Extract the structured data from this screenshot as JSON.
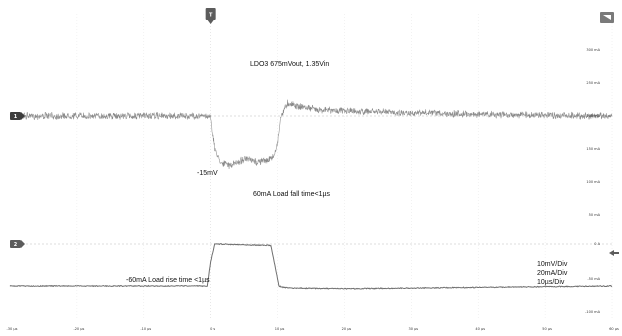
{
  "chart_data": {
    "type": "line",
    "title": "LDO3 675mVout, 1.35Vin",
    "x": {
      "range": [
        -30,
        60
      ],
      "tick_labels": [
        "-30 µs",
        "-20 µs",
        "-10 µs",
        "0 s",
        "10 µs",
        "20 µs",
        "30 µs",
        "40 µs",
        "50 µs",
        "60 µs"
      ]
    },
    "y_right": {
      "range": [
        -100,
        300
      ],
      "tick_labels": [
        "300 mA",
        "250 mA",
        "200 mA",
        "150 mA",
        "100 mA",
        "50 mA",
        "0 A",
        "-50 mA",
        "-100 mA"
      ]
    },
    "grid": true,
    "series": [
      {
        "channel": "1",
        "color": "#8a8a8a",
        "x": [
          -30,
          0,
          0.2,
          0.6,
          1.5,
          3,
          5,
          7,
          9,
          9.5,
          10,
          10.5,
          11.5,
          13,
          16,
          20,
          30,
          40,
          50,
          60
        ],
        "y": [
          0,
          0,
          -4,
          -10,
          -14,
          -15,
          -13,
          -14,
          -13,
          -12,
          -8,
          0,
          4,
          3,
          2,
          1.5,
          1,
          0.5,
          0.2,
          0
        ]
      },
      {
        "channel": "2",
        "color": "#6e6e6e",
        "x": [
          -30,
          -0.5,
          0,
          0.6,
          1,
          5,
          9,
          9.6,
          10.2,
          10.8,
          12,
          20,
          30,
          40,
          50,
          60
        ],
        "y": [
          -60,
          -60,
          -25,
          0,
          0,
          -1,
          -2,
          -30,
          -60,
          -62,
          -63,
          -64,
          -63,
          -62,
          -61,
          -60
        ]
      }
    ],
    "markers": [
      {
        "label": "T",
        "color": "#5c5c5c"
      },
      {
        "label": "1",
        "color": "#3d3d3d"
      },
      {
        "label": "2",
        "color": "#5c5c5c"
      }
    ],
    "annotations": [
      {
        "text": "LDO3 675mVout, 1.35Vin"
      },
      {
        "text": "-15mV"
      },
      {
        "text": "60mA Load fall time<1µs"
      },
      {
        "text": "-60mA Load rise time <1µs"
      },
      {
        "text": "10mV/Div"
      },
      {
        "text": "20mA/Div"
      },
      {
        "text": "10µs/Div"
      }
    ]
  }
}
